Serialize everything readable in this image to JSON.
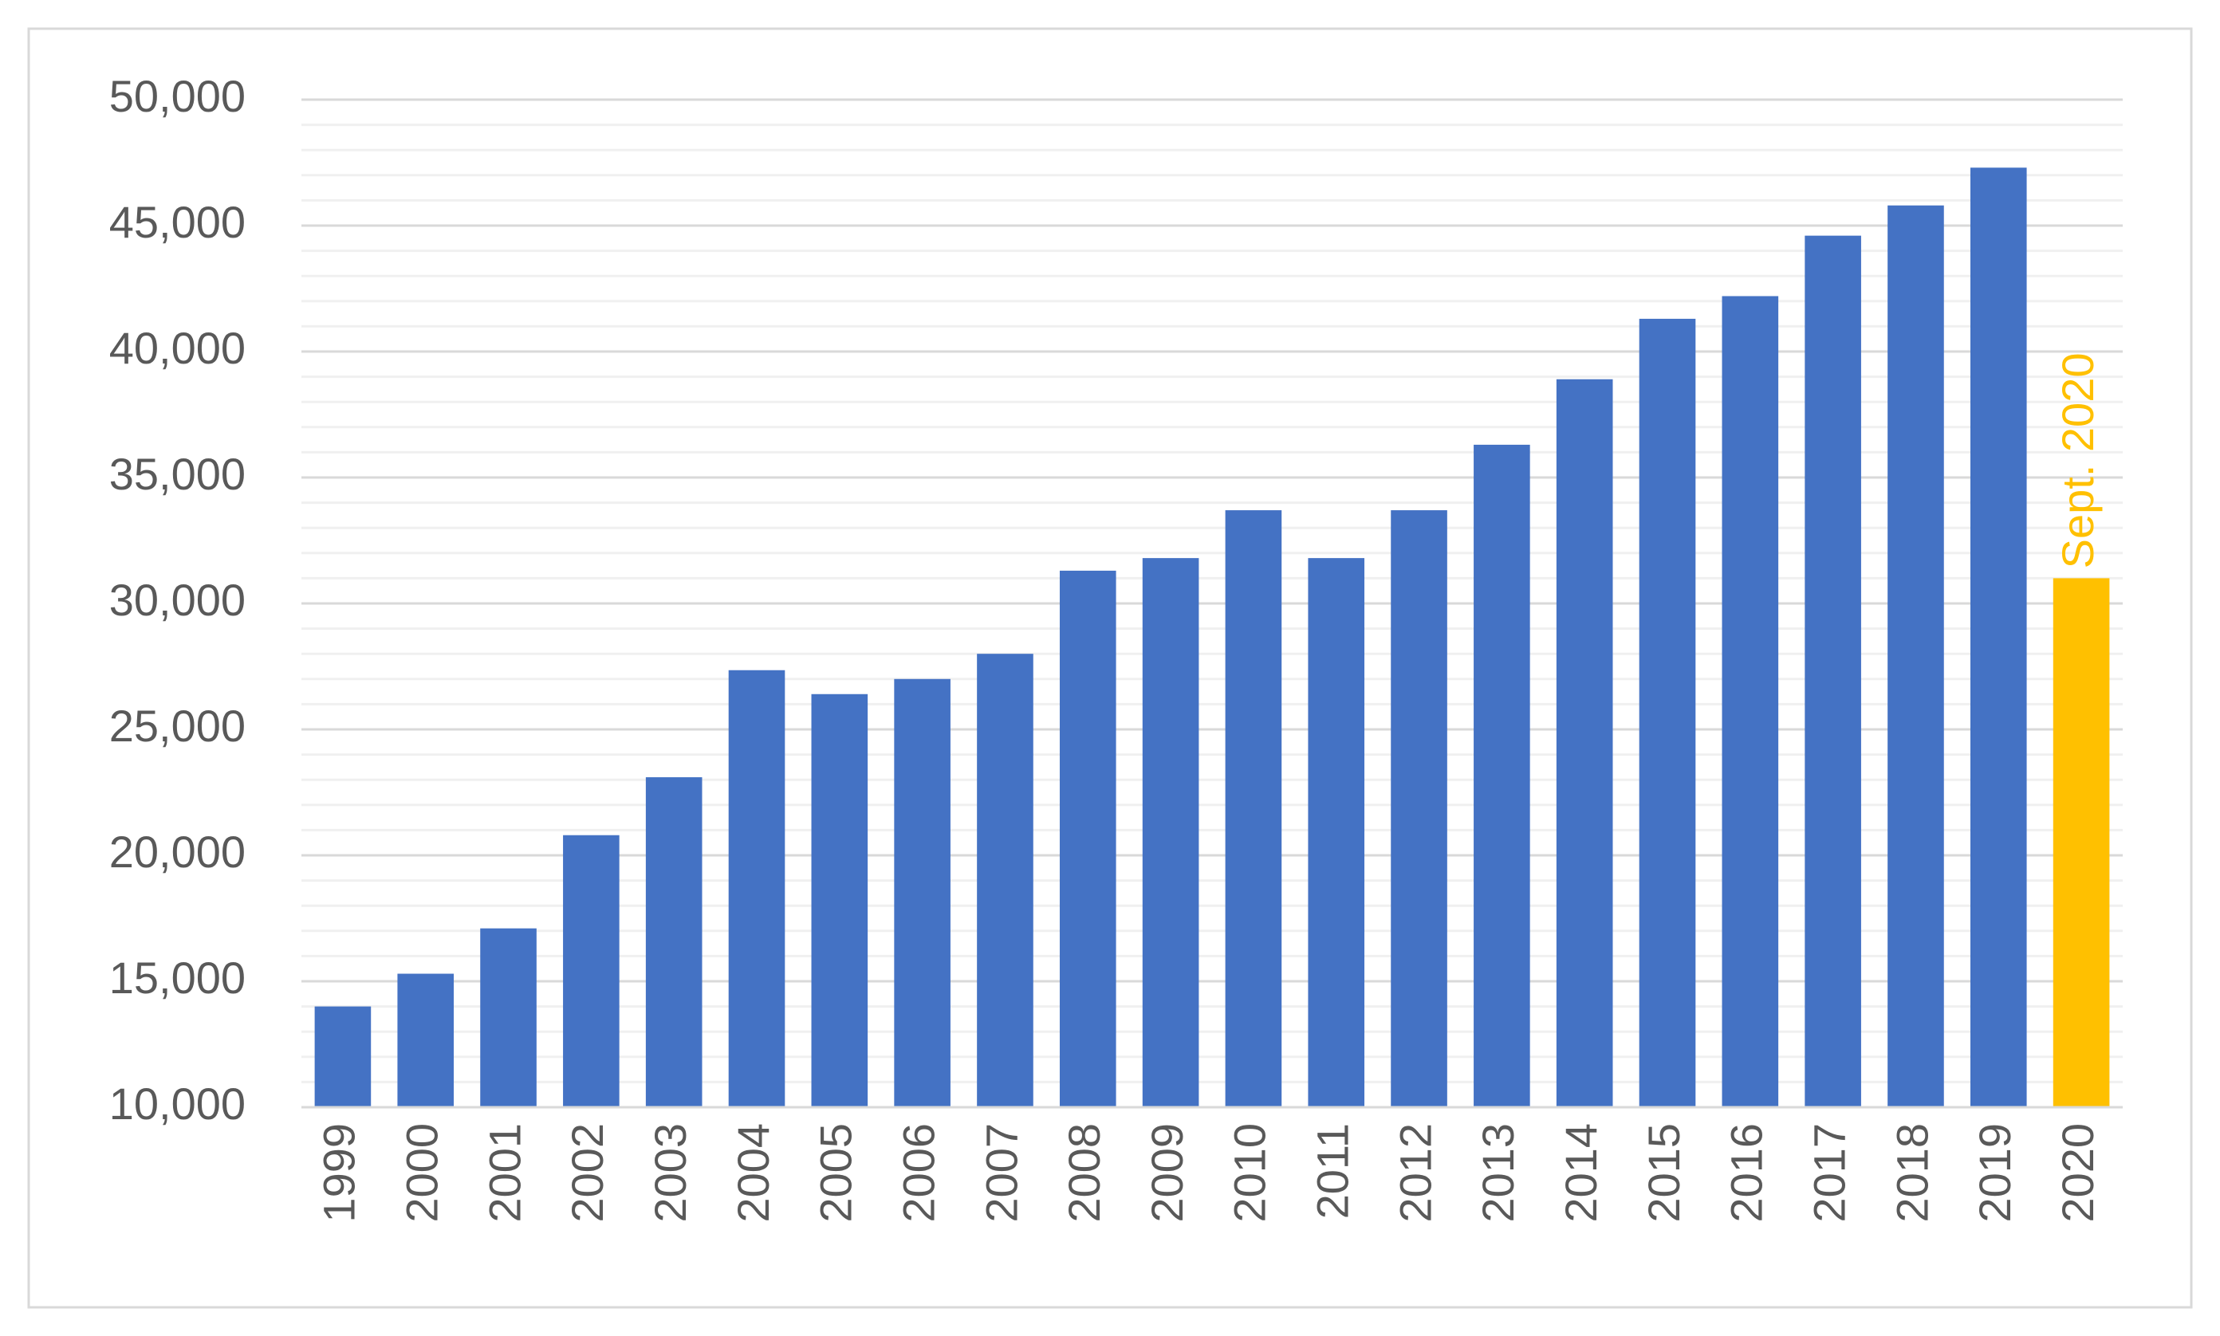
{
  "chart_data": {
    "type": "bar",
    "categories": [
      "1999",
      "2000",
      "2001",
      "2002",
      "2003",
      "2004",
      "2005",
      "2006",
      "2007",
      "2008",
      "2009",
      "2010",
      "2011",
      "2012",
      "2013",
      "2014",
      "2015",
      "2016",
      "2017",
      "2018",
      "2019",
      "2020"
    ],
    "values": [
      14000,
      15300,
      17100,
      20800,
      23100,
      27350,
      26400,
      27000,
      28000,
      31300,
      31800,
      33700,
      31800,
      33700,
      36300,
      38900,
      41300,
      42200,
      44600,
      45800,
      47300,
      31000
    ],
    "colors": [
      "#4472c4",
      "#4472c4",
      "#4472c4",
      "#4472c4",
      "#4472c4",
      "#4472c4",
      "#4472c4",
      "#4472c4",
      "#4472c4",
      "#4472c4",
      "#4472c4",
      "#4472c4",
      "#4472c4",
      "#4472c4",
      "#4472c4",
      "#4472c4",
      "#4472c4",
      "#4472c4",
      "#4472c4",
      "#4472c4",
      "#4472c4",
      "#ffc000"
    ],
    "annotation": {
      "text": "Sept. 2020",
      "color": "#ffc000"
    },
    "ylim": [
      10000,
      50000
    ],
    "yticks": [
      {
        "value": 10000,
        "label": "10,000"
      },
      {
        "value": 15000,
        "label": "15,000"
      },
      {
        "value": 20000,
        "label": "20,000"
      },
      {
        "value": 25000,
        "label": "25,000"
      },
      {
        "value": 30000,
        "label": "30,000"
      },
      {
        "value": 35000,
        "label": "35,000"
      },
      {
        "value": 40000,
        "label": "40,000"
      },
      {
        "value": 45000,
        "label": "45,000"
      },
      {
        "value": 50000,
        "label": "50,000"
      }
    ],
    "grid": true,
    "minor_grid": true
  }
}
